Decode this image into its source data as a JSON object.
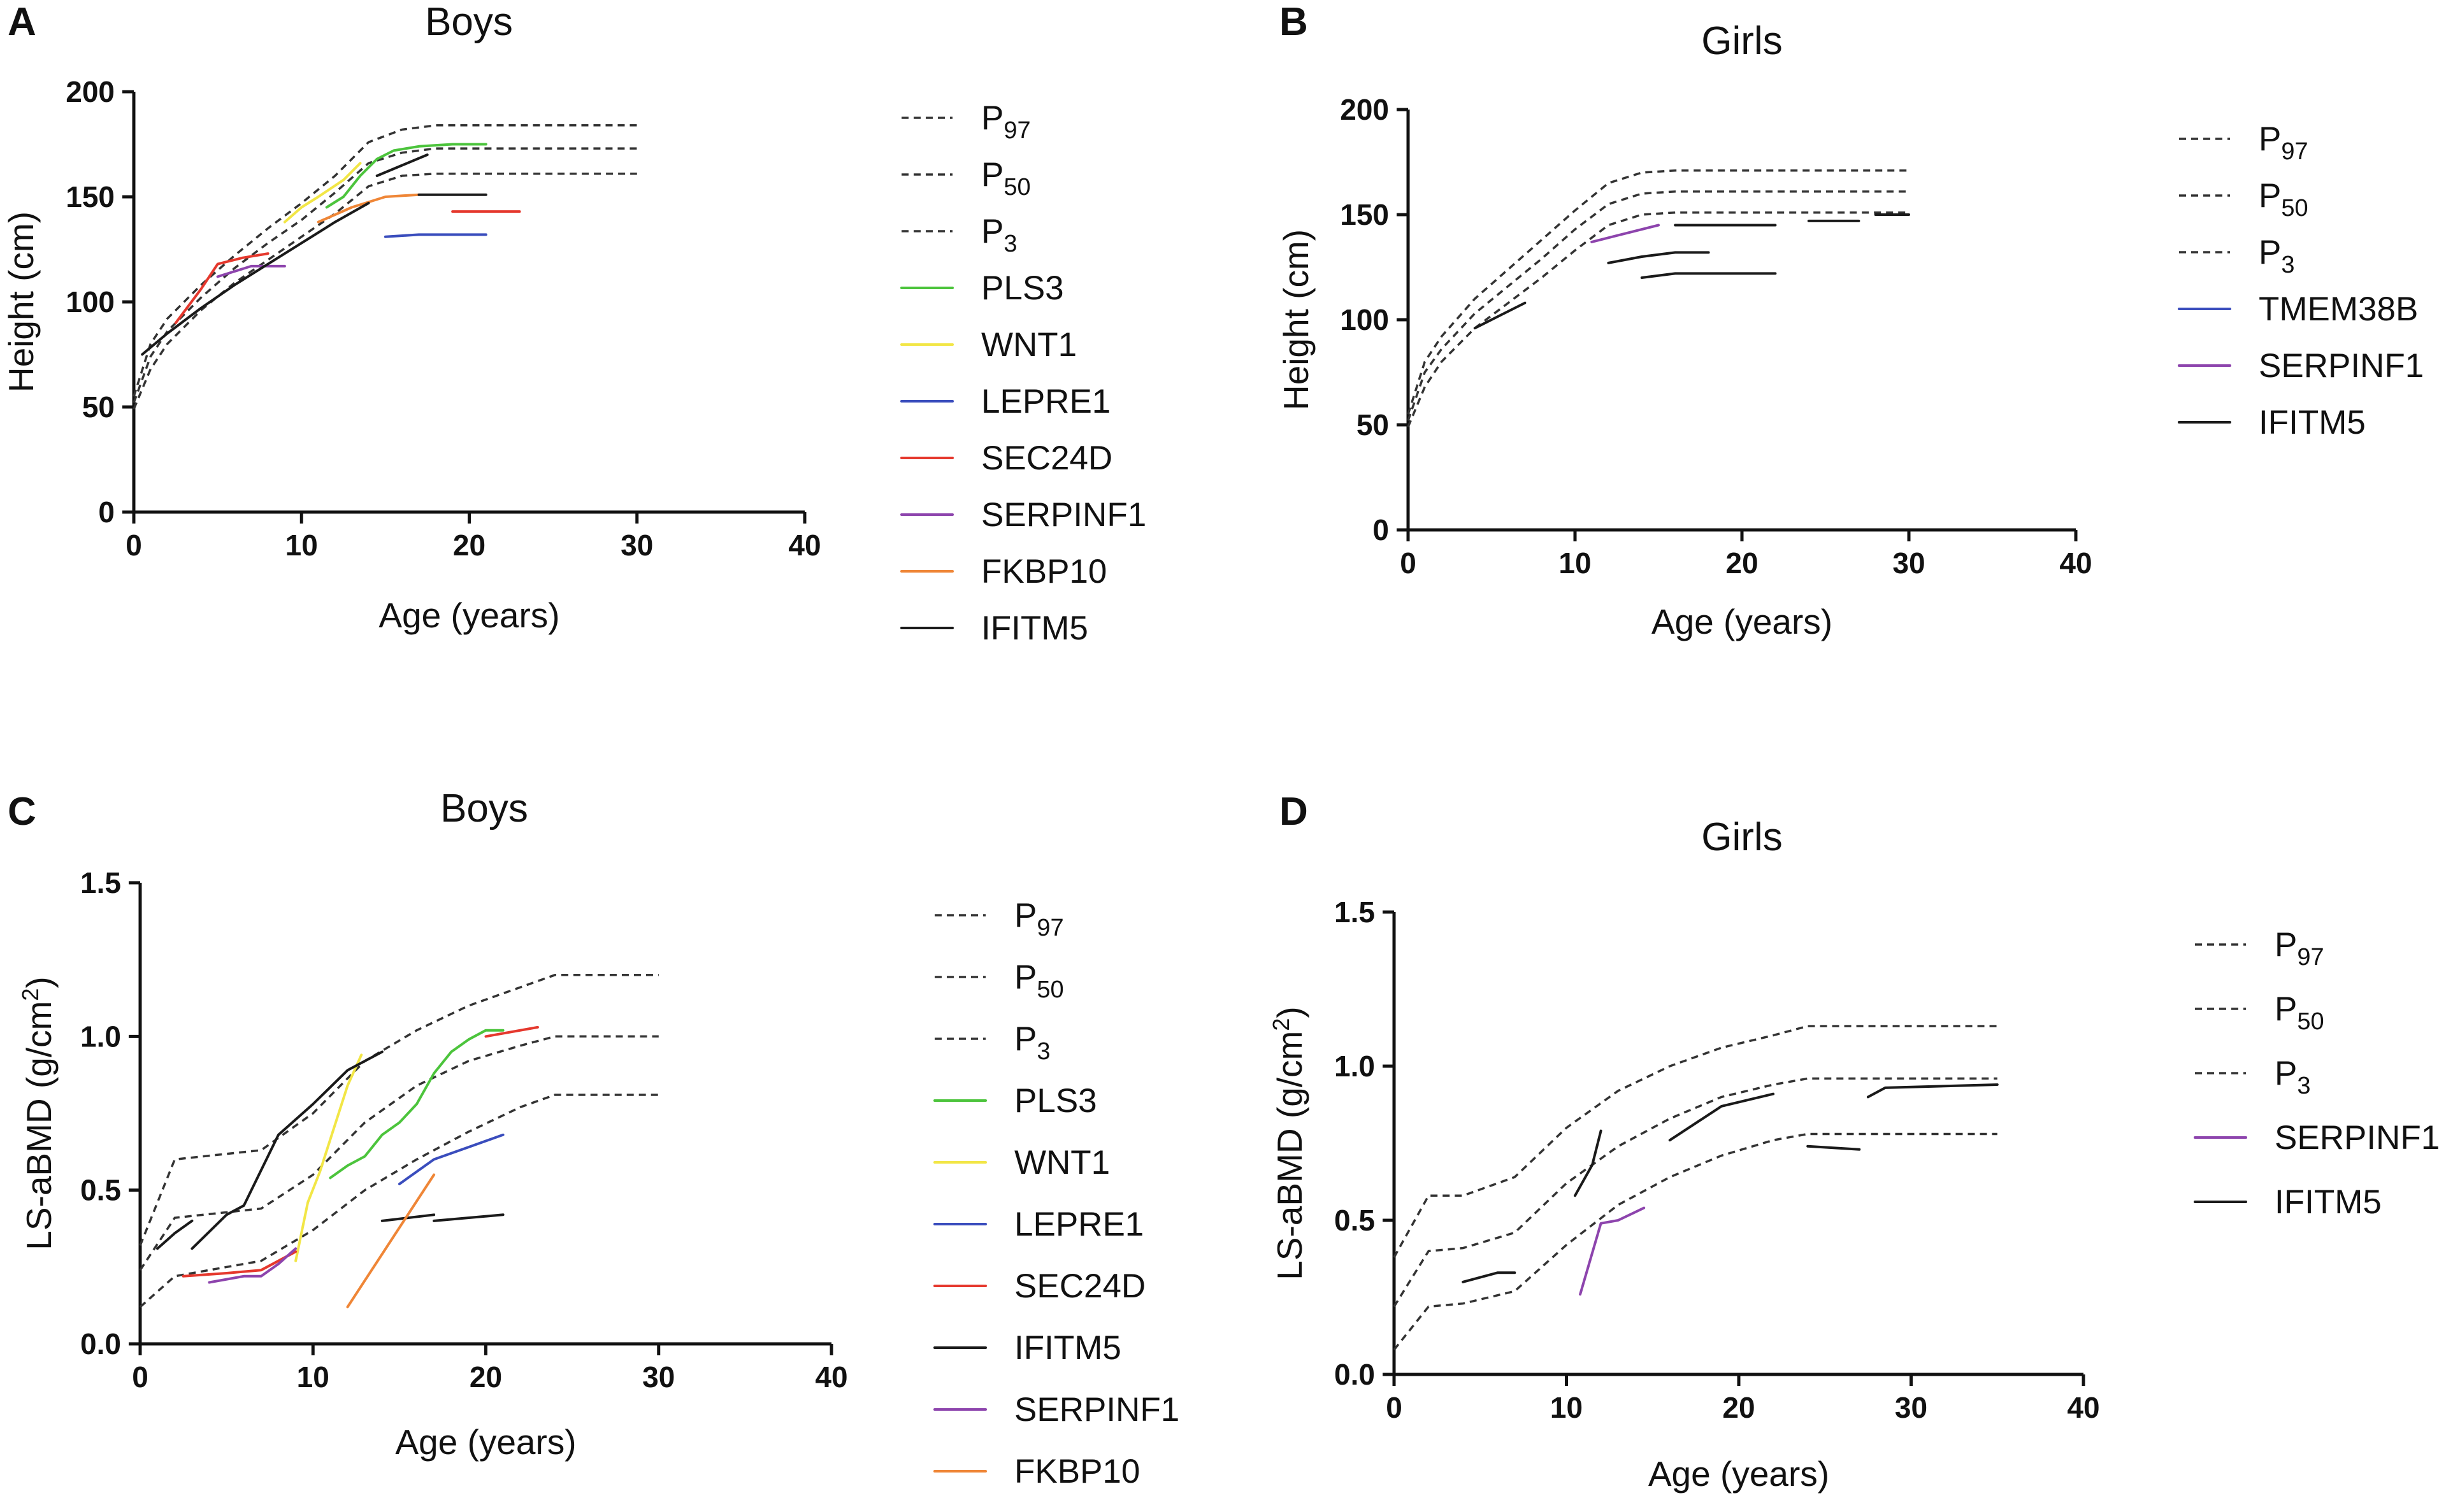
{
  "chart_data": [
    {
      "panel": "A",
      "type": "line",
      "title": "Boys",
      "xlabel": "Age (years)",
      "ylabel": "Height (cm)",
      "xlim": [
        0,
        40
      ],
      "ylim": [
        0,
        200
      ],
      "xticks": [
        0,
        10,
        20,
        30,
        40
      ],
      "yticks": [
        0,
        50,
        100,
        150,
        200
      ],
      "series": [
        {
          "name": "P",
          "sub": "97",
          "color": "#333333",
          "style": "dashed",
          "legend": true,
          "x": [
            0,
            1,
            2,
            4,
            6,
            8,
            10,
            12,
            14,
            16,
            18,
            20,
            22,
            25,
            30
          ],
          "y": [
            55,
            80,
            92,
            108,
            122,
            135,
            147,
            160,
            176,
            182,
            184,
            184,
            184,
            184,
            184
          ]
        },
        {
          "name": "P",
          "sub": "50",
          "color": "#333333",
          "style": "dashed",
          "legend": true,
          "x": [
            0,
            1,
            2,
            4,
            6,
            8,
            10,
            12,
            14,
            16,
            18,
            20,
            22,
            25,
            30
          ],
          "y": [
            52,
            74,
            86,
            102,
            116,
            128,
            139,
            152,
            166,
            171,
            173,
            173,
            173,
            173,
            173
          ]
        },
        {
          "name": "P",
          "sub": "3",
          "color": "#333333",
          "style": "dashed",
          "legend": true,
          "x": [
            0,
            1,
            2,
            4,
            6,
            8,
            10,
            12,
            14,
            16,
            18,
            20,
            22,
            25,
            30
          ],
          "y": [
            49,
            68,
            80,
            96,
            109,
            120,
            131,
            142,
            155,
            160,
            161,
            161,
            161,
            161,
            161
          ]
        },
        {
          "name": "PLS3",
          "color": "#4cc43c",
          "style": "solid",
          "legend": true,
          "x": [
            11.5,
            12.5,
            13.5,
            14.5,
            15.5,
            17,
            19,
            21
          ],
          "y": [
            145,
            150,
            160,
            168,
            172,
            174,
            175,
            175
          ]
        },
        {
          "name": "WNT1",
          "color": "#f2e646",
          "style": "solid",
          "legend": true,
          "x": [
            9,
            10,
            11,
            12.5,
            13.5
          ],
          "y": [
            138,
            145,
            150,
            158,
            166
          ]
        },
        {
          "name": "LEPRE1",
          "color": "#3a4dbd",
          "style": "solid",
          "legend": true,
          "x": [
            15,
            17,
            19,
            21
          ],
          "y": [
            131,
            132,
            132,
            132
          ]
        },
        {
          "name": "SEC24D",
          "color": "#e5382d",
          "style": "solid",
          "legend": true,
          "x": [
            2.5,
            4,
            5,
            6.5,
            8
          ],
          "y": [
            90,
            106,
            118,
            121,
            123
          ],
          "x2": [
            19,
            23
          ],
          "y2": [
            143,
            143
          ]
        },
        {
          "name": "SERPINF1",
          "color": "#8d44ad",
          "style": "solid",
          "legend": true,
          "x": [
            5,
            7,
            9
          ],
          "y": [
            112,
            117,
            117
          ]
        },
        {
          "name": "FKBP10",
          "color": "#ef8637",
          "style": "solid",
          "legend": true,
          "x": [
            11,
            13,
            15,
            17
          ],
          "y": [
            138,
            145,
            150,
            151
          ]
        },
        {
          "name": "IFITM5",
          "color": "#1a1a1a",
          "style": "solid",
          "legend": true,
          "x": [
            0.5,
            2,
            4,
            6,
            8,
            10,
            12,
            14
          ],
          "y": [
            75,
            85,
            97,
            108,
            118,
            128,
            138,
            147
          ],
          "x2": [
            14.5,
            16,
            17.5
          ],
          "y2": [
            160,
            165,
            170
          ],
          "x3": [
            17,
            21
          ],
          "y3": [
            151,
            151
          ]
        }
      ]
    },
    {
      "panel": "B",
      "type": "line",
      "title": "Girls",
      "xlabel": "Age (years)",
      "ylabel": "Height (cm)",
      "xlim": [
        0,
        40
      ],
      "ylim": [
        0,
        200
      ],
      "xticks": [
        0,
        10,
        20,
        30,
        40
      ],
      "yticks": [
        0,
        50,
        100,
        150,
        200
      ],
      "series": [
        {
          "name": "P",
          "sub": "97",
          "color": "#333333",
          "style": "dashed",
          "legend": true,
          "x": [
            0,
            1,
            2,
            4,
            6,
            8,
            10,
            12,
            14,
            16,
            18,
            20,
            25,
            30
          ],
          "y": [
            55,
            80,
            92,
            110,
            124,
            138,
            152,
            165,
            170,
            171,
            171,
            171,
            171,
            171
          ]
        },
        {
          "name": "P",
          "sub": "50",
          "color": "#333333",
          "style": "dashed",
          "legend": true,
          "x": [
            0,
            1,
            2,
            4,
            6,
            8,
            10,
            12,
            14,
            16,
            18,
            20,
            25,
            30
          ],
          "y": [
            52,
            75,
            86,
            103,
            116,
            129,
            143,
            155,
            160,
            161,
            161,
            161,
            161,
            161
          ]
        },
        {
          "name": "P",
          "sub": "3",
          "color": "#333333",
          "style": "dashed",
          "legend": true,
          "x": [
            0,
            1,
            2,
            4,
            6,
            8,
            10,
            12,
            14,
            16,
            18,
            20,
            25,
            30
          ],
          "y": [
            49,
            68,
            80,
            96,
            108,
            120,
            133,
            145,
            150,
            151,
            151,
            151,
            151,
            151
          ]
        },
        {
          "name": "TMEM38B",
          "color": "#3a4dbd",
          "style": "solid",
          "legend": true,
          "x": [],
          "y": []
        },
        {
          "name": "SERPINF1",
          "color": "#8d44ad",
          "style": "solid",
          "legend": true,
          "x": [
            11,
            13,
            15
          ],
          "y": [
            137,
            141,
            145
          ]
        },
        {
          "name": "IFITM5",
          "color": "#1a1a1a",
          "style": "solid",
          "legend": true,
          "x": [
            4,
            5.5,
            7
          ],
          "y": [
            96,
            102,
            108
          ],
          "x2": [
            12,
            14,
            16,
            18
          ],
          "y2": [
            127,
            130,
            132,
            132
          ],
          "x3": [
            14,
            16,
            22
          ],
          "y3": [
            120,
            122,
            122
          ],
          "x4": [
            16,
            22
          ],
          "y4": [
            145,
            145
          ],
          "x5": [
            24,
            27
          ],
          "y5": [
            147,
            147
          ],
          "x6": [
            28,
            30
          ],
          "y6": [
            150,
            150
          ]
        }
      ]
    },
    {
      "panel": "C",
      "type": "line",
      "title": "Boys",
      "xlabel": "Age (years)",
      "ylabel": "LS-aBMD (g/cm",
      "ylabel_sup": "2",
      "ylabel_end": ")",
      "xlim": [
        0,
        40
      ],
      "ylim": [
        0,
        1.5
      ],
      "xticks": [
        0,
        10,
        20,
        30,
        40
      ],
      "yticks": [
        0.0,
        0.5,
        1.0,
        1.5
      ],
      "ytick_labels": [
        "0.0",
        "0.5",
        "1.0",
        "1.5"
      ],
      "series": [
        {
          "name": "P",
          "sub": "97",
          "color": "#333333",
          "style": "dashed",
          "legend": true,
          "x": [
            0,
            2,
            7,
            10,
            13,
            16,
            19,
            22,
            24,
            27,
            30
          ],
          "y": [
            0.32,
            0.6,
            0.63,
            0.75,
            0.92,
            1.02,
            1.1,
            1.16,
            1.2,
            1.2,
            1.2
          ]
        },
        {
          "name": "P",
          "sub": "50",
          "color": "#333333",
          "style": "dashed",
          "legend": true,
          "x": [
            0,
            2,
            7,
            10,
            13,
            16,
            19,
            22,
            24,
            27,
            30
          ],
          "y": [
            0.24,
            0.41,
            0.44,
            0.55,
            0.72,
            0.84,
            0.92,
            0.97,
            1.0,
            1.0,
            1.0
          ]
        },
        {
          "name": "P",
          "sub": "3",
          "color": "#333333",
          "style": "dashed",
          "legend": true,
          "x": [
            0,
            2,
            7,
            10,
            13,
            16,
            19,
            22,
            24,
            27,
            30
          ],
          "y": [
            0.12,
            0.22,
            0.27,
            0.37,
            0.5,
            0.6,
            0.69,
            0.77,
            0.81,
            0.81,
            0.81
          ]
        },
        {
          "name": "PLS3",
          "color": "#4cc43c",
          "style": "solid",
          "legend": true,
          "x": [
            11,
            12,
            13,
            14,
            15,
            16,
            17,
            18,
            19,
            20,
            21
          ],
          "y": [
            0.54,
            0.58,
            0.61,
            0.68,
            0.72,
            0.78,
            0.88,
            0.95,
            0.99,
            1.02,
            1.02
          ]
        },
        {
          "name": "WNT1",
          "color": "#f2e646",
          "style": "solid",
          "legend": true,
          "x": [
            9,
            9.7,
            10.4,
            11.2,
            12,
            12.8
          ],
          "y": [
            0.27,
            0.46,
            0.56,
            0.7,
            0.84,
            0.94
          ]
        },
        {
          "name": "LEPRE1",
          "color": "#3a4dbd",
          "style": "solid",
          "legend": true,
          "x": [
            15,
            17,
            19,
            21
          ],
          "y": [
            0.52,
            0.6,
            0.64,
            0.68
          ]
        },
        {
          "name": "SEC24D",
          "color": "#e5382d",
          "style": "solid",
          "legend": true,
          "x": [
            2.5,
            5,
            7,
            9
          ],
          "y": [
            0.22,
            0.23,
            0.24,
            0.3
          ],
          "x2": [
            20,
            23
          ],
          "y2": [
            1.0,
            1.03
          ]
        },
        {
          "name": "IFITM5",
          "color": "#1a1a1a",
          "style": "solid",
          "legend": true,
          "x": [
            1,
            2,
            3
          ],
          "y": [
            0.31,
            0.36,
            0.4
          ],
          "x2": [
            3,
            5,
            6,
            8,
            10,
            12,
            14
          ],
          "y2": [
            0.31,
            0.42,
            0.45,
            0.68,
            0.78,
            0.89,
            0.95
          ],
          "x3": [
            14,
            17
          ],
          "y3": [
            0.4,
            0.42
          ],
          "x4": [
            17,
            21
          ],
          "y4": [
            0.4,
            0.42
          ]
        },
        {
          "name": "SERPINF1",
          "color": "#8d44ad",
          "style": "solid",
          "legend": true,
          "x": [
            4,
            6,
            7,
            8,
            9
          ],
          "y": [
            0.2,
            0.22,
            0.22,
            0.26,
            0.31
          ]
        },
        {
          "name": "FKBP10",
          "color": "#ef8637",
          "style": "solid",
          "legend": true,
          "x": [
            12,
            17
          ],
          "y": [
            0.12,
            0.55
          ]
        }
      ]
    },
    {
      "panel": "D",
      "type": "line",
      "title": "Girls",
      "xlabel": "Age (years)",
      "ylabel": "LS-aBMD (g/cm",
      "ylabel_sup": "2",
      "ylabel_end": ")",
      "xlim": [
        0,
        40
      ],
      "ylim": [
        0,
        1.5
      ],
      "xticks": [
        0,
        10,
        20,
        30,
        40
      ],
      "yticks": [
        0.0,
        0.5,
        1.0,
        1.5
      ],
      "ytick_labels": [
        "0.0",
        "0.5",
        "1.0",
        "1.5"
      ],
      "series": [
        {
          "name": "P",
          "sub": "97",
          "color": "#333333",
          "style": "dashed",
          "legend": true,
          "x": [
            0,
            2,
            4,
            7,
            10,
            13,
            16,
            19,
            22,
            24,
            28,
            35
          ],
          "y": [
            0.38,
            0.58,
            0.58,
            0.64,
            0.8,
            0.92,
            1.0,
            1.06,
            1.1,
            1.13,
            1.13,
            1.13
          ]
        },
        {
          "name": "P",
          "sub": "50",
          "color": "#333333",
          "style": "dashed",
          "legend": true,
          "x": [
            0,
            2,
            4,
            7,
            10,
            13,
            16,
            19,
            22,
            24,
            28,
            35
          ],
          "y": [
            0.22,
            0.4,
            0.41,
            0.46,
            0.62,
            0.74,
            0.83,
            0.9,
            0.94,
            0.96,
            0.96,
            0.96
          ]
        },
        {
          "name": "P",
          "sub": "3",
          "color": "#333333",
          "style": "dashed",
          "legend": true,
          "x": [
            0,
            2,
            4,
            7,
            10,
            13,
            16,
            19,
            22,
            24,
            28,
            35
          ],
          "y": [
            0.08,
            0.22,
            0.23,
            0.27,
            0.42,
            0.55,
            0.64,
            0.71,
            0.76,
            0.78,
            0.78,
            0.78
          ]
        },
        {
          "name": "SERPINF1",
          "color": "#8d44ad",
          "style": "solid",
          "legend": true,
          "x": [
            10.8,
            12,
            13,
            14.5
          ],
          "y": [
            0.26,
            0.49,
            0.5,
            0.54
          ]
        },
        {
          "name": "IFITM5",
          "color": "#1a1a1a",
          "style": "solid",
          "legend": true,
          "x": [
            4,
            6,
            7
          ],
          "y": [
            0.3,
            0.33,
            0.33
          ],
          "x2": [
            10.5,
            11.5,
            12
          ],
          "y2": [
            0.58,
            0.68,
            0.79
          ],
          "x3": [
            16,
            19,
            22
          ],
          "y3": [
            0.76,
            0.87,
            0.91
          ],
          "x4": [
            24,
            27
          ],
          "y4": [
            0.74,
            0.73
          ],
          "x5": [
            27.5,
            28.5,
            35
          ],
          "y5": [
            0.9,
            0.93,
            0.94
          ]
        }
      ]
    }
  ]
}
